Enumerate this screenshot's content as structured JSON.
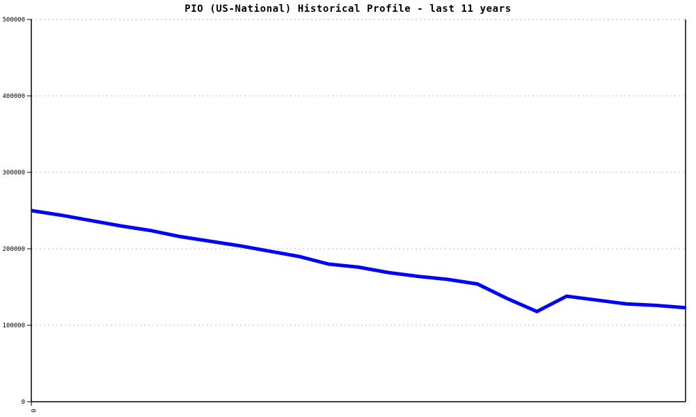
{
  "chart_data": {
    "type": "line",
    "title": "PIO (US-National) Historical Profile - last 11 years",
    "xlabel": "",
    "ylabel": "",
    "xlim": [
      0,
      11
    ],
    "ylim": [
      0,
      500000
    ],
    "x": [
      0,
      0.5,
      1,
      1.5,
      2,
      2.5,
      3,
      3.5,
      4,
      4.5,
      5,
      5.5,
      6,
      6.5,
      7,
      7.5,
      8,
      8.5,
      9,
      9.5,
      10,
      10.5,
      11
    ],
    "series": [
      {
        "name": "PIO (US-National)",
        "color": "#0000FF",
        "line_width": 5,
        "values": [
          250000,
          244000,
          237000,
          230000,
          224000,
          216000,
          210000,
          204000,
          197000,
          190000,
          180000,
          176000,
          169000,
          164000,
          160000,
          154000,
          135000,
          118000,
          138000,
          133000,
          128000,
          126000,
          123000
        ]
      }
    ],
    "y_ticks": [
      0,
      100000,
      200000,
      300000,
      400000,
      500000
    ],
    "y_tick_labels": [
      "0",
      "100000",
      "200000",
      "300000",
      "400000",
      "500000"
    ],
    "x_tick_labels": [
      {
        "x": 0,
        "label": "0"
      }
    ],
    "grid": {
      "horizontal_dashed": true,
      "color": "#BDBDBD",
      "dash": "2 4"
    },
    "legend": "none",
    "axis_color": "#000000",
    "background": "#FFFFFF"
  }
}
